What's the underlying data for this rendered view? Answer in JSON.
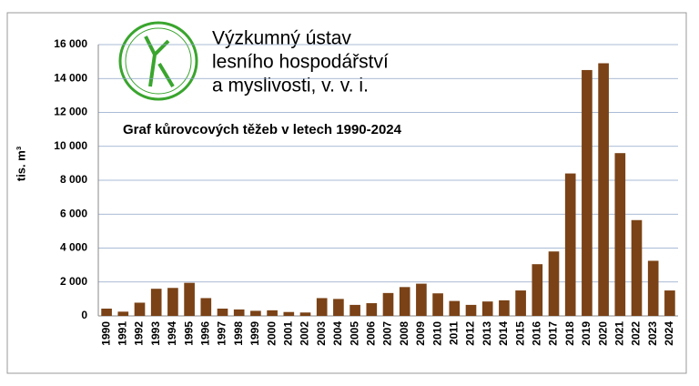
{
  "chart_data": {
    "type": "bar",
    "title": "Graf kůrovcových těžeb v letech 1990-2024",
    "header": [
      "Výzkumný ústav",
      "lesního hospodářství",
      "a myslivosti, v. v. i."
    ],
    "y_label": "tis. m³",
    "categories": [
      "1990",
      "1991",
      "1992",
      "1993",
      "1994",
      "1995",
      "1996",
      "1997",
      "1998",
      "1999",
      "2000",
      "2001",
      "2002",
      "2003",
      "2004",
      "2005",
      "2006",
      "2007",
      "2008",
      "2009",
      "2010",
      "2011",
      "2012",
      "2013",
      "2014",
      "2015",
      "2016",
      "2017",
      "2018",
      "2019",
      "2020",
      "2021",
      "2022",
      "2023",
      "2024"
    ],
    "values": [
      430,
      250,
      780,
      1600,
      1650,
      1950,
      1050,
      430,
      380,
      300,
      330,
      230,
      200,
      1050,
      1000,
      650,
      750,
      1350,
      1700,
      1900,
      1330,
      880,
      650,
      850,
      920,
      1500,
      3050,
      3800,
      8400,
      14500,
      14900,
      9600,
      5650,
      3250,
      1500
    ],
    "color": "#7a4216",
    "ylim": [
      0,
      16000
    ],
    "yticks": [
      0,
      {
        "value": 2000,
        "label": "2 000"
      },
      {
        "value": 4000,
        "label": "4 000"
      },
      {
        "value": 6000,
        "label": "6 000"
      },
      {
        "value": 8000,
        "label": "8 000"
      },
      {
        "value": 10000,
        "label": "10 000"
      },
      {
        "value": 12000,
        "label": "12 000"
      },
      {
        "value": 14000,
        "label": "14 000"
      },
      {
        "value": 16000,
        "label": "16 000"
      }
    ],
    "grid": true
  }
}
